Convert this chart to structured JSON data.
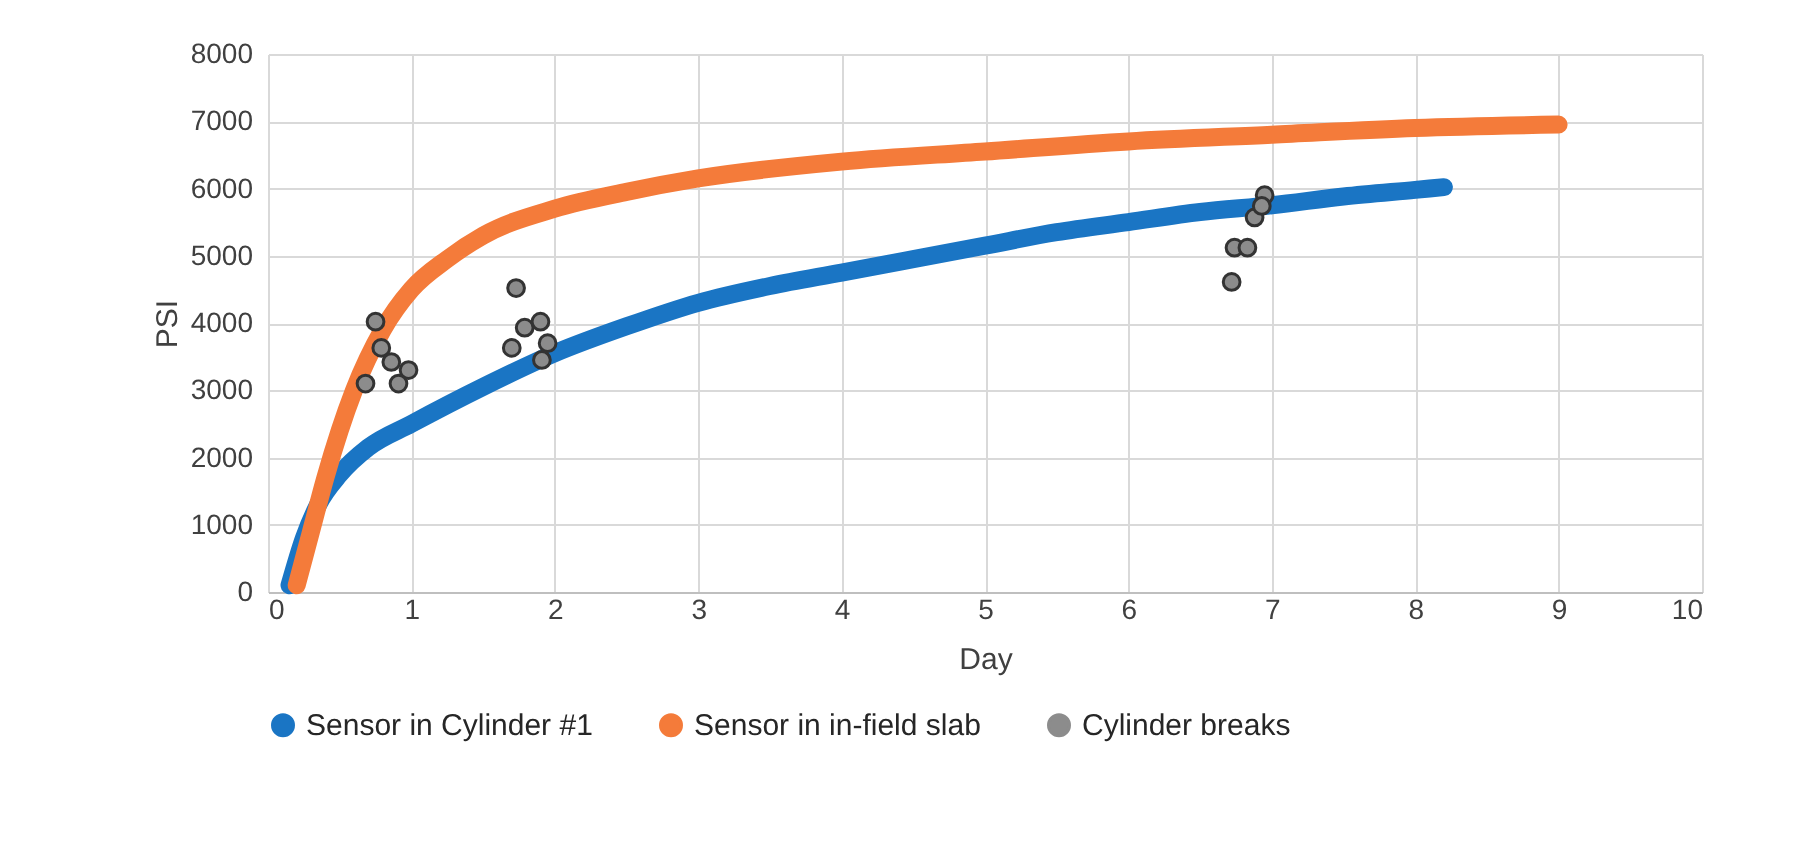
{
  "chart_data": {
    "type": "line",
    "xlabel": "Day",
    "ylabel": "PSI",
    "xlim": [
      0,
      10
    ],
    "xticks": [
      0,
      1,
      2,
      3,
      4,
      5,
      6,
      7,
      8,
      9,
      10
    ],
    "ylim": [
      0,
      8000
    ],
    "yticks": [
      0,
      1000,
      2000,
      3000,
      4000,
      5000,
      6000,
      7000,
      8000
    ],
    "grid": true,
    "legend": "bottom",
    "series": [
      {
        "name": "Sensor in Cylinder #1",
        "color": "#1a75c4",
        "x": [
          0.15,
          0.25,
          0.35,
          0.5,
          0.7,
          1,
          1.5,
          2,
          2.5,
          3,
          3.5,
          4,
          4.5,
          5,
          5.5,
          6,
          6.5,
          7,
          7.5,
          8,
          8.2
        ],
        "values": [
          100,
          800,
          1300,
          1750,
          2150,
          2500,
          3050,
          3550,
          3950,
          4300,
          4550,
          4750,
          4950,
          5150,
          5350,
          5500,
          5650,
          5750,
          5880,
          5980,
          6020
        ]
      },
      {
        "name": "Sensor in in-field slab",
        "color": "#f47b3a",
        "x": [
          0.2,
          0.3,
          0.4,
          0.5,
          0.6,
          0.8,
          1,
          1.25,
          1.5,
          2,
          2.5,
          3,
          4,
          5,
          6,
          7,
          8,
          9
        ],
        "values": [
          100,
          900,
          1700,
          2400,
          3000,
          3900,
          4500,
          4950,
          5300,
          5700,
          5950,
          6150,
          6400,
          6550,
          6700,
          6800,
          6900,
          6950
        ]
      },
      {
        "name": "Cylinder breaks",
        "type": "scatter",
        "marker": "circle",
        "color": "#8c8c8c",
        "x": [
          0.75,
          0.79,
          0.86,
          0.98,
          0.68,
          0.91,
          1.73,
          1.79,
          1.9,
          1.7,
          1.95,
          1.91,
          6.72,
          6.74,
          6.83,
          6.88,
          6.95,
          6.93
        ],
        "values": [
          4020,
          3630,
          3420,
          3300,
          3100,
          3100,
          4520,
          3930,
          4020,
          3630,
          3700,
          3450,
          4610,
          5120,
          5120,
          5570,
          5900,
          5740
        ]
      }
    ]
  }
}
